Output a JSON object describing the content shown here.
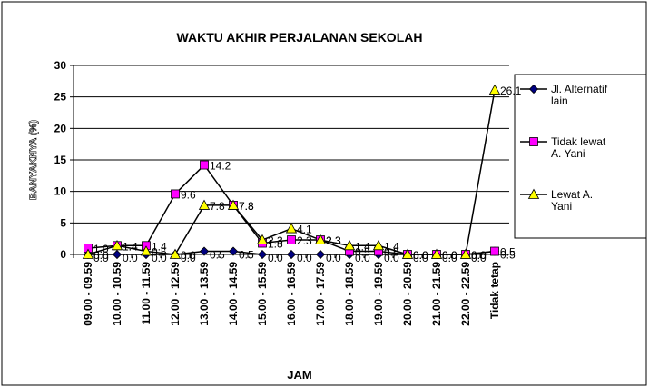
{
  "chart_data": {
    "type": "line",
    "title": "WAKTU AKHIR PERJALANAN SEKOLAH",
    "x_label": "JAM",
    "y_label": "BANYAKNYA (%)",
    "categories": [
      "09.00 - 09.59",
      "10.00 - 10.59",
      "11.00 - 11.59",
      "12.00 - 12.59",
      "13.00 - 13.59",
      "14.00 - 14.59",
      "15.00 - 15.59",
      "16.00 - 16.59",
      "17.00 - 17.59",
      "18.00 - 18.59",
      "19.00 - 19.59",
      "20.00 - 20.59",
      "21.00 - 21.59",
      "22.00 - 22.59",
      "Tidak tetap"
    ],
    "series": [
      {
        "name": "Jl. Alternatif lain",
        "color": "#000080",
        "marker": "diamond",
        "values": [
          0,
          0,
          0,
          0,
          0.5,
          0.5,
          0,
          0,
          0,
          0,
          0,
          0,
          0,
          0,
          0.5
        ],
        "value_labels": [
          "0.0",
          "0.0",
          "0.0",
          "0.0",
          "0.5",
          "0.5",
          "0.0",
          "0.0",
          "0.0",
          "0.0",
          "0.0",
          "0.0",
          "0.0",
          "0.0",
          "0.5"
        ]
      },
      {
        "name": "Tidak lewat A. Yani",
        "color": "#ff00ff",
        "marker": "square",
        "values": [
          1,
          1.4,
          1.4,
          9.6,
          14.2,
          7.8,
          1.8,
          2.3,
          2.3,
          0.5,
          0.5,
          0,
          0,
          0,
          0.5
        ],
        "value_labels": [
          "1.0",
          "1.4",
          "1.4",
          "9.6",
          "14.2",
          "7.8",
          "1.8",
          "2.3",
          "2.3",
          "0.5",
          "0.5",
          "0.0",
          "0.0",
          "0.0",
          "0.5"
        ]
      },
      {
        "name": "Lewat A. Yani",
        "color": "#ffff00",
        "marker": "triangle",
        "values": [
          0,
          1.4,
          0.5,
          0,
          7.8,
          7.8,
          2.3,
          4.1,
          2.3,
          1.4,
          1.4,
          0,
          0,
          0,
          26.1
        ],
        "value_labels": [
          "0.0",
          "1.4",
          "0.5",
          "0.0",
          "7.8",
          "7.8",
          "2.3",
          "4.1",
          "2.3",
          "1.4",
          "1.4",
          "0.0",
          "0.0",
          "0.0",
          "26.1"
        ]
      }
    ],
    "ylim": [
      0,
      30
    ],
    "yticks": [
      0,
      5,
      10,
      15,
      20,
      25,
      30
    ],
    "grid": true,
    "legend": "right"
  }
}
